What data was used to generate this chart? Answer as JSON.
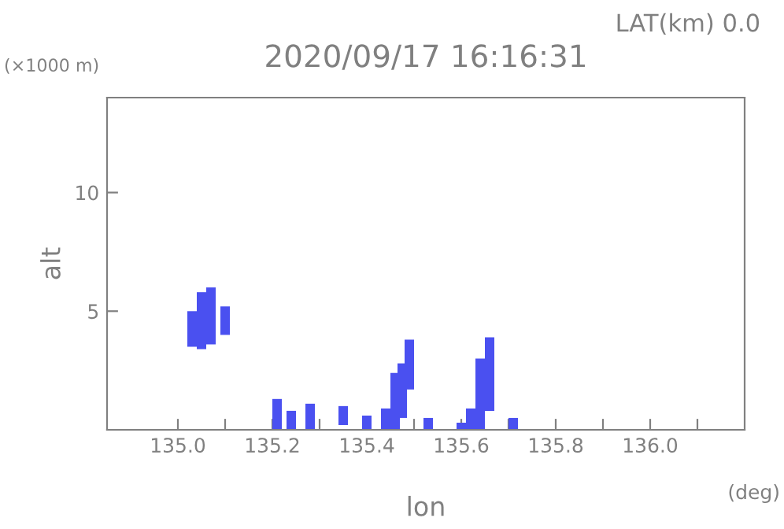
{
  "chart_data": {
    "type": "bar",
    "title": "2020/09/17 16:16:31",
    "xlabel": "lon",
    "ylabel": "alt",
    "annotations": [
      "LAT(km) 0.0",
      "(×1000 m)",
      "(deg)"
    ],
    "x": [
      135.03,
      135.05,
      135.07,
      135.1,
      135.21,
      135.24,
      135.28,
      135.35,
      135.4,
      135.44,
      135.46,
      135.475,
      135.49,
      135.53,
      135.6,
      135.62,
      135.64,
      135.66,
      135.71
    ],
    "base": [
      3.5,
      3.4,
      3.6,
      4.0,
      0,
      0,
      0,
      0.2,
      0,
      0,
      0,
      0.5,
      1.7,
      0,
      0,
      0,
      0,
      0.8,
      0
    ],
    "values": [
      1.5,
      2.4,
      2.4,
      1.2,
      1.3,
      0.8,
      1.1,
      0.8,
      0.6,
      0.9,
      2.4,
      2.3,
      2.1,
      0.5,
      0.3,
      0.9,
      3.0,
      3.1,
      0.5
    ],
    "color": "#4a50f0",
    "xlim": [
      134.85,
      136.2
    ],
    "ylim": [
      0,
      14
    ],
    "xticks": [
      {
        "value": 135.0,
        "label": "135.0"
      },
      {
        "value": 135.1,
        "label": null
      },
      135.2,
      {
        "value": 135.3,
        "label": null
      },
      135.4,
      {
        "value": 135.5,
        "label": null
      },
      135.6,
      {
        "value": 135.7,
        "label": null
      },
      135.8,
      {
        "value": 135.9,
        "label": null
      },
      {
        "value": 136.0,
        "label": "136.0"
      },
      {
        "value": 136.1,
        "label": null
      }
    ],
    "yticks": [
      5,
      10
    ],
    "grid": false
  }
}
